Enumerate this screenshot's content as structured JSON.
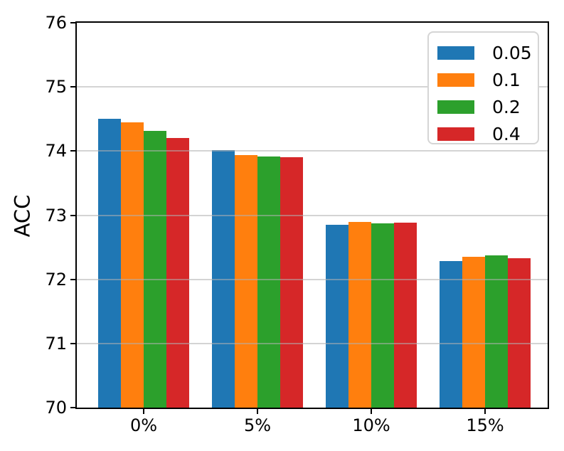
{
  "chart_data": {
    "type": "bar",
    "title": "",
    "xlabel": "",
    "ylabel": "ACC",
    "categories": [
      "0%",
      "5%",
      "10%",
      "15%"
    ],
    "series": [
      {
        "name": "0.05",
        "color": "#1f77b4",
        "values": [
          74.5,
          74.02,
          72.85,
          72.28
        ]
      },
      {
        "name": "0.1",
        "color": "#ff7f0e",
        "values": [
          74.45,
          73.94,
          72.9,
          72.35
        ]
      },
      {
        "name": "0.2",
        "color": "#2ca02c",
        "values": [
          74.31,
          73.91,
          72.87,
          72.37
        ]
      },
      {
        "name": "0.4",
        "color": "#d62728",
        "values": [
          74.2,
          73.9,
          72.88,
          72.33
        ]
      }
    ],
    "ylim": [
      70,
      76
    ],
    "yticks": [
      70,
      71,
      72,
      73,
      74,
      75,
      76
    ],
    "grid": true,
    "grid_over_bars": true,
    "legend_position": "upper right",
    "spine_color": "#000000",
    "grid_color": "#b0b0b0"
  }
}
